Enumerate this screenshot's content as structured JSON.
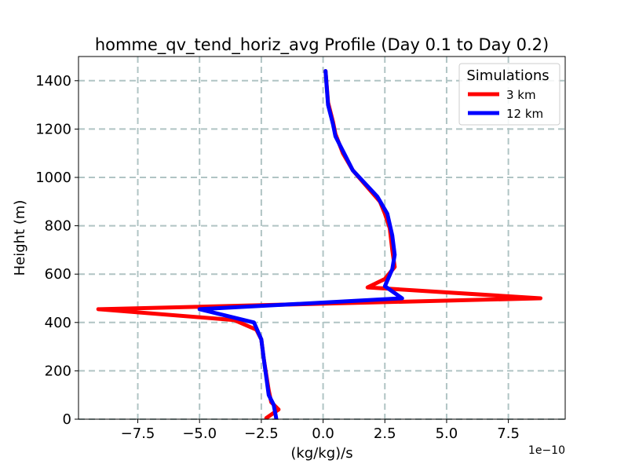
{
  "chart_data": {
    "type": "line",
    "title": "homme_qv_tend_horiz_avg Profile (Day 0.1 to Day 0.2)",
    "xlabel": "(kg/kg)/s",
    "ylabel": "Height (m)",
    "x_offset_label": "1e−10",
    "xlim": [
      -9.9,
      9.8
    ],
    "ylim": [
      0,
      1500
    ],
    "x_ticks": [
      -7.5,
      -5.0,
      -2.5,
      0.0,
      2.5,
      5.0,
      7.5
    ],
    "x_tick_labels": [
      "−7.5",
      "−5.0",
      "−2.5",
      "0.0",
      "2.5",
      "5.0",
      "7.5"
    ],
    "y_ticks": [
      0,
      200,
      400,
      600,
      800,
      1000,
      1200,
      1400
    ],
    "y_tick_labels": [
      "0",
      "200",
      "400",
      "600",
      "800",
      "1000",
      "1200",
      "1400"
    ],
    "grid": true,
    "legend": {
      "title": "Simulations",
      "position": "top-right"
    },
    "series": [
      {
        "name": "3 km",
        "color": "#ff0000",
        "points": [
          {
            "x": -2.3,
            "y": 5
          },
          {
            "x": -1.8,
            "y": 40
          },
          {
            "x": -2.1,
            "y": 70
          },
          {
            "x": -2.2,
            "y": 120
          },
          {
            "x": -2.4,
            "y": 250
          },
          {
            "x": -2.5,
            "y": 330
          },
          {
            "x": -2.7,
            "y": 370
          },
          {
            "x": -3.6,
            "y": 410
          },
          {
            "x": -9.1,
            "y": 455
          },
          {
            "x": 8.8,
            "y": 500
          },
          {
            "x": 1.8,
            "y": 545
          },
          {
            "x": 2.5,
            "y": 580
          },
          {
            "x": 2.9,
            "y": 630
          },
          {
            "x": 2.8,
            "y": 700
          },
          {
            "x": 2.7,
            "y": 790
          },
          {
            "x": 2.5,
            "y": 850
          },
          {
            "x": 2.3,
            "y": 900
          },
          {
            "x": 1.2,
            "y": 1030
          },
          {
            "x": 0.8,
            "y": 1100
          },
          {
            "x": 0.5,
            "y": 1180
          },
          {
            "x": 0.4,
            "y": 1230
          },
          {
            "x": 0.2,
            "y": 1310
          },
          {
            "x": 0.1,
            "y": 1440
          }
        ]
      },
      {
        "name": "12 km",
        "color": "#0000ff",
        "points": [
          {
            "x": -1.9,
            "y": 5
          },
          {
            "x": -2.0,
            "y": 60
          },
          {
            "x": -2.2,
            "y": 100
          },
          {
            "x": -2.4,
            "y": 250
          },
          {
            "x": -2.5,
            "y": 330
          },
          {
            "x": -2.8,
            "y": 400
          },
          {
            "x": -4.0,
            "y": 430
          },
          {
            "x": -5.0,
            "y": 455
          },
          {
            "x": 3.2,
            "y": 500
          },
          {
            "x": 2.5,
            "y": 550
          },
          {
            "x": 2.8,
            "y": 620
          },
          {
            "x": 2.9,
            "y": 680
          },
          {
            "x": 2.8,
            "y": 760
          },
          {
            "x": 2.6,
            "y": 850
          },
          {
            "x": 2.2,
            "y": 920
          },
          {
            "x": 1.2,
            "y": 1030
          },
          {
            "x": 0.9,
            "y": 1090
          },
          {
            "x": 0.5,
            "y": 1170
          },
          {
            "x": 0.4,
            "y": 1220
          },
          {
            "x": 0.2,
            "y": 1300
          },
          {
            "x": 0.1,
            "y": 1440
          }
        ]
      }
    ]
  }
}
